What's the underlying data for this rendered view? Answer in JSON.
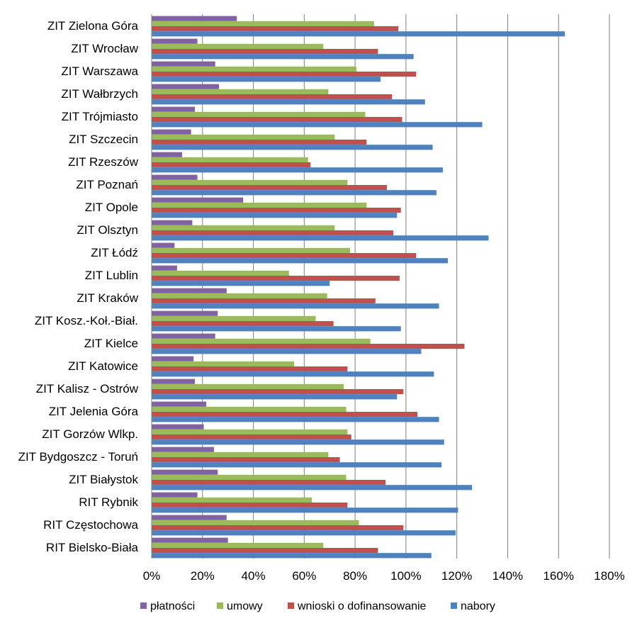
{
  "chart_data": {
    "type": "bar",
    "orientation": "horizontal",
    "title": "",
    "xlabel": "",
    "ylabel": "",
    "xlim": [
      0,
      180
    ],
    "x_ticks": [
      "0%",
      "20%",
      "40%",
      "60%",
      "80%",
      "100%",
      "120%",
      "140%",
      "160%",
      "180%"
    ],
    "grid": true,
    "legend_position": "bottom",
    "categories": [
      "ZIT Zielona Góra",
      "ZIT Wrocław",
      "ZIT Warszawa",
      "ZIT Wałbrzych",
      "ZIT Trójmiasto",
      "ZIT Szczecin",
      "ZIT Rzeszów",
      "ZIT Poznań",
      "ZIT Opole",
      "ZIT Olsztyn",
      "ZIT Łódź",
      "ZIT Lublin",
      "ZIT Kraków",
      "ZIT Kosz.-Koł.-Biał.",
      "ZIT Kielce",
      "ZIT Katowice",
      "ZIT Kalisz - Ostrów",
      "ZIT Jelenia Góra",
      "ZIT Gorzów Wlkp.",
      "ZIT Bydgoszcz - Toruń",
      "ZIT Białystok",
      "RIT Rybnik",
      "RIT Częstochowa",
      "RIT Bielsko-Biała"
    ],
    "series": [
      {
        "name": "płatności",
        "color": "#8064a2",
        "values": [
          33.5,
          18,
          25,
          26.5,
          17,
          15.5,
          12,
          18,
          36,
          16,
          9,
          10,
          29.5,
          26,
          25,
          16.5,
          17,
          21.5,
          20.5,
          24.5,
          26,
          18,
          29.5,
          30
        ]
      },
      {
        "name": "umowy",
        "color": "#9bbb59",
        "values": [
          87.5,
          67.5,
          80.5,
          69.5,
          84,
          72,
          61.5,
          77,
          84.5,
          72,
          78,
          54,
          69,
          64.5,
          86,
          56,
          75.5,
          76.5,
          77,
          69.5,
          76.5,
          63,
          81.5,
          67.5
        ]
      },
      {
        "name": "wnioski o dofinansowanie",
        "color": "#c0504d",
        "values": [
          97,
          89,
          104,
          94.5,
          98.5,
          84.5,
          62.5,
          92.5,
          98,
          95,
          104,
          97.5,
          88,
          71.5,
          123,
          77,
          99,
          104.5,
          78.5,
          74,
          92,
          77,
          99,
          89
        ]
      },
      {
        "name": "nabory",
        "color": "#4f81bd",
        "values": [
          162.5,
          103,
          90,
          107.5,
          130,
          110.5,
          114.5,
          112,
          96.5,
          132.5,
          116.5,
          70,
          113,
          98,
          106,
          111,
          96.5,
          113,
          115,
          114,
          126,
          120.5,
          119.5,
          110
        ]
      }
    ]
  }
}
